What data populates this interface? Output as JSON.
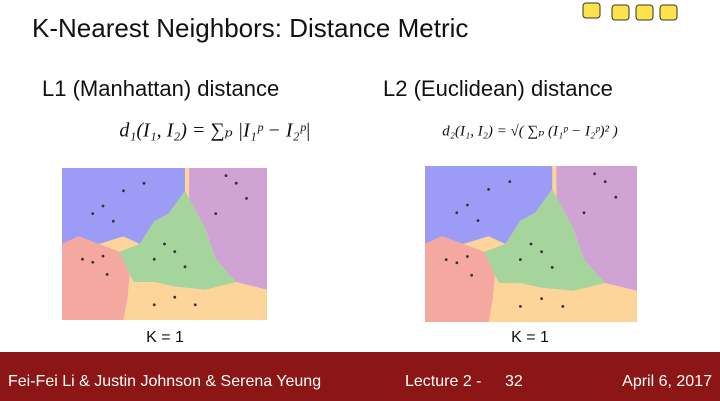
{
  "title": "K-Nearest Neighbors: Distance Metric",
  "panels": [
    {
      "heading": "L1 (Manhattan) distance",
      "formula": "d₁(I₁, I₂) = ∑ₚ |I₁ᵖ − I₂ᵖ|",
      "caption": "K = 1"
    },
    {
      "heading": "L2 (Euclidean) distance",
      "formula": "d₂(I₁, I₂) = √( ∑ₚ (I₁ᵖ − I₂ᵖ)² )",
      "caption": "K = 1"
    }
  ],
  "footer": {
    "authors": "Fei-Fei Li & Justin Johnson & Serena Yeung",
    "lecture": "Lecture 2 -",
    "page": "32",
    "date": "April 6, 2017"
  }
}
